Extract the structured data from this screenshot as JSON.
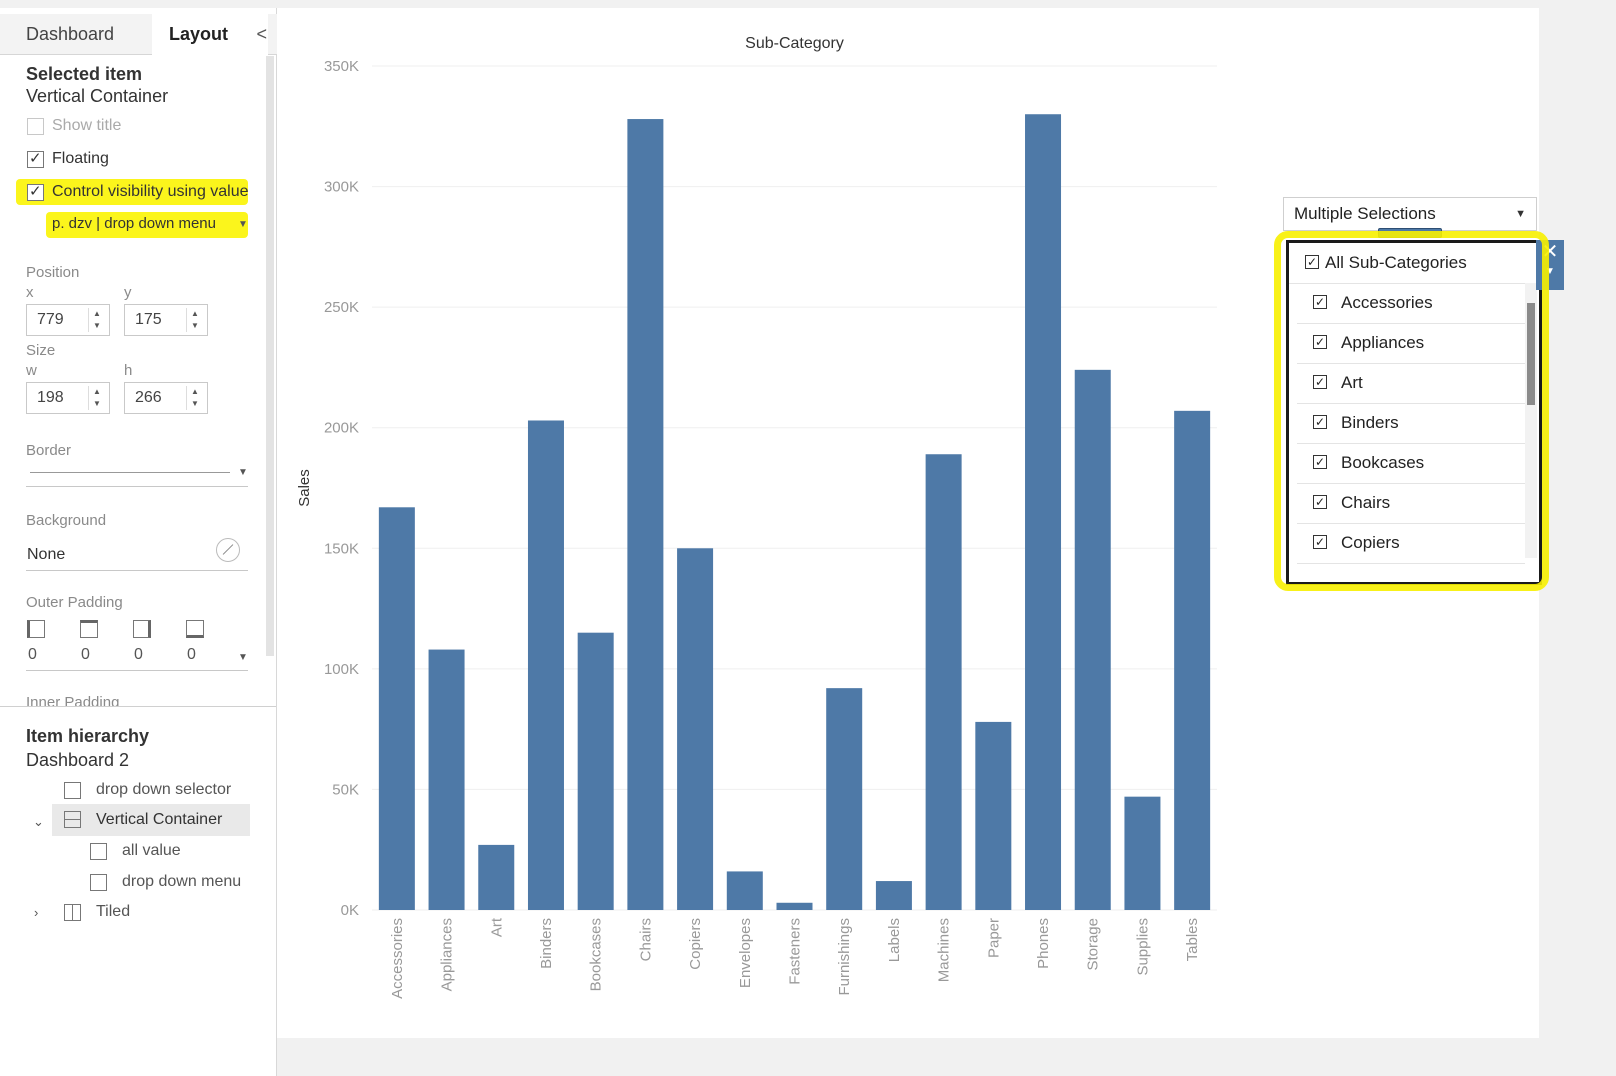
{
  "left_panel": {
    "tabs": {
      "dashboard": "Dashboard",
      "layout": "Layout"
    },
    "collapse_glyph": "<",
    "selected_item": {
      "heading": "Selected item",
      "value": "Vertical Container"
    },
    "options": {
      "show_title": "Show title",
      "floating": "Floating",
      "control_visibility": "Control visibility using value"
    },
    "control_value": "p. dzv | drop down menu",
    "position": {
      "label": "Position",
      "x_label": "x",
      "x": "779",
      "y_label": "y",
      "y": "175"
    },
    "size": {
      "label": "Size",
      "w_label": "w",
      "w": "198",
      "h_label": "h",
      "h": "266"
    },
    "border": {
      "label": "Border"
    },
    "background": {
      "label": "Background",
      "value": "None"
    },
    "outer_padding": {
      "label": "Outer Padding",
      "values": [
        "0",
        "0",
        "0",
        "0"
      ]
    },
    "inner_padding": {
      "label": "Inner Padding"
    },
    "hierarchy": {
      "heading": "Item hierarchy",
      "root": "Dashboard 2",
      "items": [
        "drop down selector",
        "Vertical Container",
        "all value",
        "drop down menu",
        "Tiled"
      ]
    }
  },
  "chart_data": {
    "type": "bar",
    "title": "Sub-Category",
    "ylabel": "Sales",
    "xlabel": "",
    "ylim": [
      0,
      350000
    ],
    "yticks": [
      "0K",
      "50K",
      "100K",
      "150K",
      "200K",
      "250K",
      "300K",
      "350K"
    ],
    "categories": [
      "Accessories",
      "Appliances",
      "Art",
      "Binders",
      "Bookcases",
      "Chairs",
      "Copiers",
      "Envelopes",
      "Fasteners",
      "Furnishings",
      "Labels",
      "Machines",
      "Paper",
      "Phones",
      "Storage",
      "Supplies",
      "Tables"
    ],
    "values": [
      167000,
      108000,
      27000,
      203000,
      115000,
      328000,
      150000,
      16000,
      3000,
      92000,
      12000,
      189000,
      78000,
      330000,
      224000,
      47000,
      207000
    ],
    "color": "#4e79a7",
    "grid": false
  },
  "filter": {
    "dropdown_value": "Multiple Selections",
    "items": [
      "All Sub-Categories",
      "Accessories",
      "Appliances",
      "Art",
      "Binders",
      "Bookcases",
      "Chairs",
      "Copiers"
    ],
    "close_glyph": "✕"
  },
  "colors": {
    "highlight": "#fbf51c",
    "bar": "#4e79a7"
  }
}
